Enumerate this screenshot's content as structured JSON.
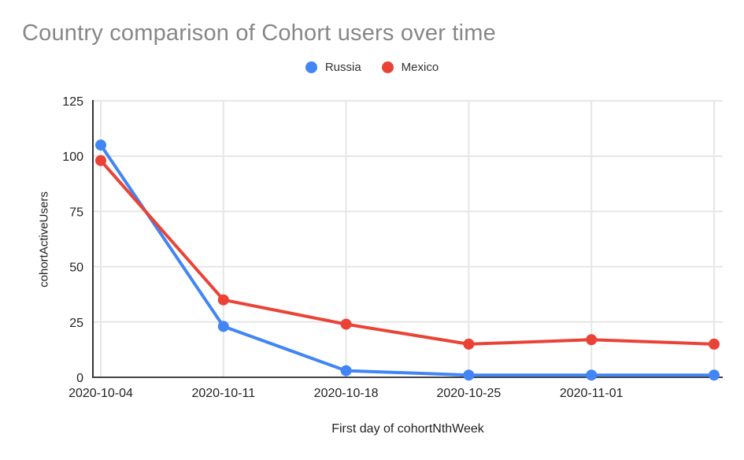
{
  "chart_data": {
    "type": "line",
    "title": "Country comparison of Cohort users over time",
    "xlabel": "First day of cohortNthWeek",
    "ylabel": "cohortActiveUsers",
    "x_tick_labels": [
      "2020-10-04",
      "2020-10-11",
      "2020-10-18",
      "2020-10-25",
      "2020-11-01",
      ""
    ],
    "y_ticks": [
      0,
      25,
      50,
      75,
      100,
      125
    ],
    "ylim": [
      0,
      125
    ],
    "grid": true,
    "legend_position": "top-center",
    "series": [
      {
        "name": "Russia",
        "color": "#4285F4",
        "values": [
          105,
          23,
          3,
          1,
          1,
          1
        ]
      },
      {
        "name": "Mexico",
        "color": "#EA4335",
        "values": [
          98,
          35,
          24,
          15,
          17,
          15
        ]
      }
    ],
    "colors": {
      "title_text": "#878787",
      "tick_text": "#222222",
      "gridline": "#e6e6e6",
      "y_axis_line": "#333333",
      "x_axis_line": "#424242",
      "background": "#ffffff"
    }
  }
}
